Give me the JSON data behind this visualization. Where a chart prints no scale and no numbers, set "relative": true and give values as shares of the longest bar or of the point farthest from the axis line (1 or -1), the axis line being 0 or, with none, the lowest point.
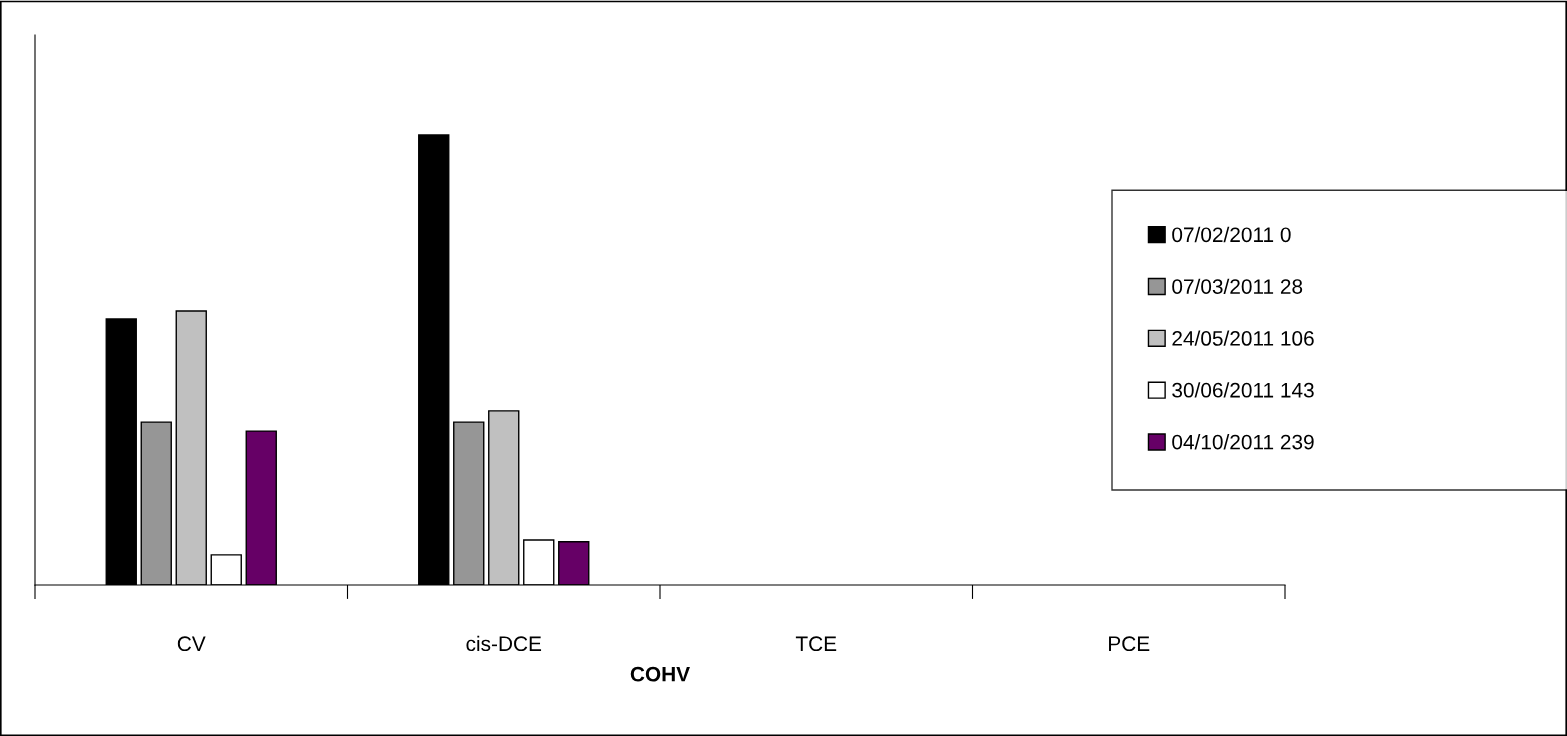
{
  "chart_data": {
    "type": "bar",
    "xlabel": "COHV",
    "relative": true,
    "categories": [
      "CV",
      "cis-DCE",
      "TCE",
      "PCE"
    ],
    "series": [
      {
        "name": "07/02/2011 0",
        "color": "#000000",
        "values": [
          0.591,
          1.0,
          null,
          null
        ]
      },
      {
        "name": "07/03/2011 28",
        "color": "#969696",
        "values": [
          0.362,
          0.362,
          null,
          null
        ]
      },
      {
        "name": "24/05/2011 106",
        "color": "#c0c0c0",
        "values": [
          0.609,
          0.387,
          null,
          null
        ]
      },
      {
        "name": "30/06/2011 143",
        "color": "#ffffff",
        "values": [
          0.067,
          0.1,
          null,
          null
        ]
      },
      {
        "name": "04/10/2011 239",
        "color": "#660066",
        "values": [
          0.342,
          0.096,
          null,
          null
        ]
      }
    ],
    "grid": false,
    "legend": "right"
  }
}
